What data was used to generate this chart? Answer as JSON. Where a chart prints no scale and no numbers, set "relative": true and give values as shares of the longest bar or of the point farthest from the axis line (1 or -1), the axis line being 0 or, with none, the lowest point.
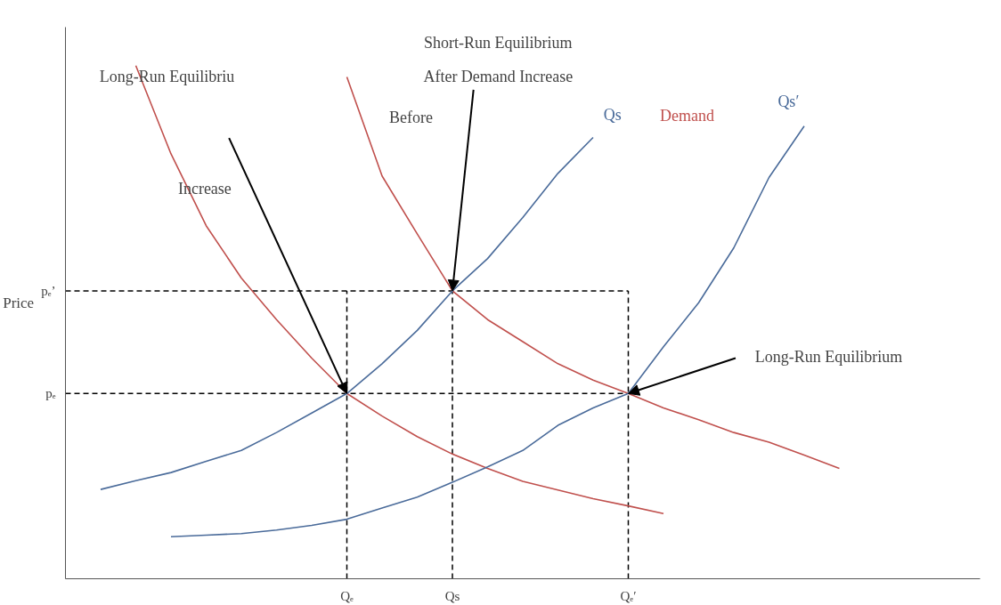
{
  "chart_data": {
    "type": "line",
    "ylabel": "Price",
    "relative": true,
    "categories": [
      null,
      null,
      null,
      null,
      null,
      null,
      null,
      "Qₑ",
      null,
      null,
      "Qs",
      null,
      null,
      null,
      null,
      "Qₑ′",
      null,
      null,
      null,
      null,
      null,
      null
    ],
    "grid": false,
    "legend": false,
    "marker": "none",
    "line_style": "solid",
    "series": [
      {
        "color": "#c0504d",
        "values": [
          null,
          1.0,
          0.828,
          0.688,
          0.586,
          0.505,
          0.43,
          0.361,
          0.317,
          0.277,
          0.243,
          0.215,
          0.19,
          0.173,
          0.156,
          0.142,
          0.127,
          null,
          null,
          null,
          null,
          null
        ]
      },
      {
        "name": "Demand",
        "color": "#c0504d",
        "values": [
          null,
          null,
          null,
          null,
          null,
          null,
          null,
          0.978,
          0.785,
          0.672,
          0.561,
          0.505,
          0.462,
          0.419,
          0.387,
          0.361,
          0.333,
          0.31,
          0.285,
          0.266,
          0.241,
          0.215
        ]
      },
      {
        "name": "Qs",
        "color": "#4a6b9a",
        "values": [
          0.174,
          0.191,
          0.207,
          0.229,
          0.25,
          0.285,
          0.323,
          0.361,
          0.419,
          0.484,
          0.561,
          0.624,
          0.704,
          0.79,
          0.86,
          null,
          null,
          null,
          null,
          null,
          null,
          null
        ]
      },
      {
        "name": "Qs′",
        "color": "#4a6b9a",
        "values": [
          null,
          null,
          0.082,
          0.085,
          0.088,
          0.095,
          0.104,
          0.116,
          0.138,
          0.159,
          0.188,
          0.218,
          0.25,
          0.299,
          0.333,
          0.361,
          0.452,
          0.538,
          0.645,
          0.782,
          0.882,
          null
        ]
      }
    ],
    "ref_lines": [
      {
        "axis": "y",
        "value": 0.361,
        "label": "pₑ",
        "line_style": "dashed",
        "color": "#000000"
      },
      {
        "axis": "y",
        "value": 0.561,
        "label": "pₑ’",
        "line_style": "dashed",
        "color": "#000000"
      },
      {
        "axis": "x",
        "value": "Qₑ",
        "line_style": "dashed",
        "color": "#000000"
      },
      {
        "axis": "x",
        "value": "Qs",
        "line_style": "dashed",
        "color": "#000000"
      },
      {
        "axis": "x",
        "value": "Qₑ′",
        "line_style": "dashed",
        "color": "#000000"
      }
    ],
    "annotations": [
      "Long-Run Equilibriu",
      "Short-Run Equilibrium After Demand Increase",
      "Long-Run Equilibrium",
      "Before",
      "Increase"
    ]
  }
}
